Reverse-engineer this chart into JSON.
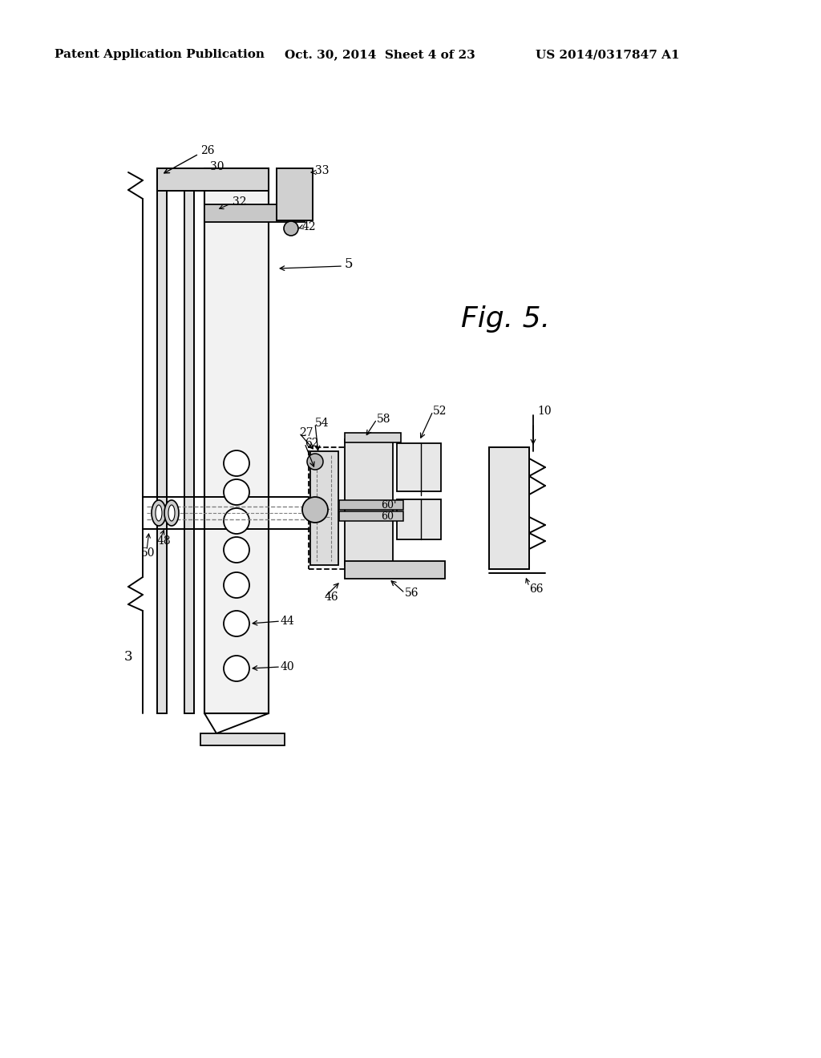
{
  "bg_color": "#ffffff",
  "header_left": "Patent Application Publication",
  "header_mid": "Oct. 30, 2014  Sheet 4 of 23",
  "header_right": "US 2014/0317847 A1",
  "fig_label": "Fig. 5.",
  "header_fontsize": 11,
  "fig_label_fontsize": 26
}
